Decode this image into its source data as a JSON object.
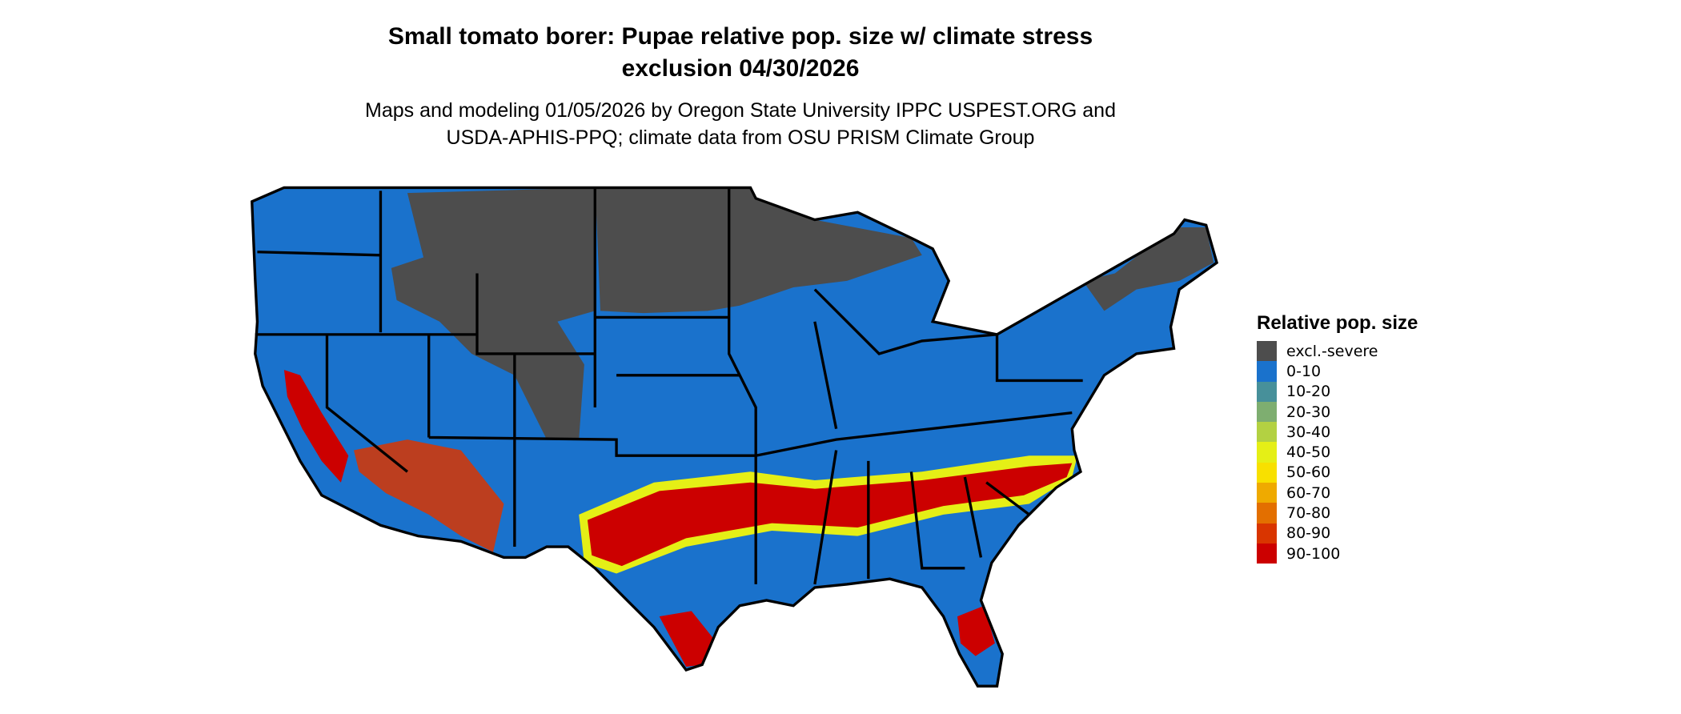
{
  "title_line1": "Small tomato borer: Pupae relative pop. size w/ climate stress",
  "title_line2": "exclusion 04/30/2026",
  "subtitle_line1": "Maps and modeling 01/05/2026 by Oregon State University IPPC USPEST.ORG and",
  "subtitle_line2": "USDA-APHIS-PPQ; climate data from OSU PRISM Climate Group",
  "legend": {
    "title": "Relative pop. size",
    "items": [
      {
        "label": "excl.-severe",
        "color": "#4d4d4d"
      },
      {
        "label": "0-10",
        "color": "#1a72cc"
      },
      {
        "label": "10-20",
        "color": "#47909a"
      },
      {
        "label": "20-30",
        "color": "#7eae70"
      },
      {
        "label": "30-40",
        "color": "#b3d142"
      },
      {
        "label": "40-50",
        "color": "#e5ef16"
      },
      {
        "label": "50-60",
        "color": "#f8e000"
      },
      {
        "label": "60-70",
        "color": "#efaa00"
      },
      {
        "label": "70-80",
        "color": "#e36f00"
      },
      {
        "label": "80-90",
        "color": "#d93500"
      },
      {
        "label": "90-100",
        "color": "#cc0000"
      }
    ]
  },
  "map": {
    "region": "Contiguous United States",
    "border_color": "#000000"
  }
}
